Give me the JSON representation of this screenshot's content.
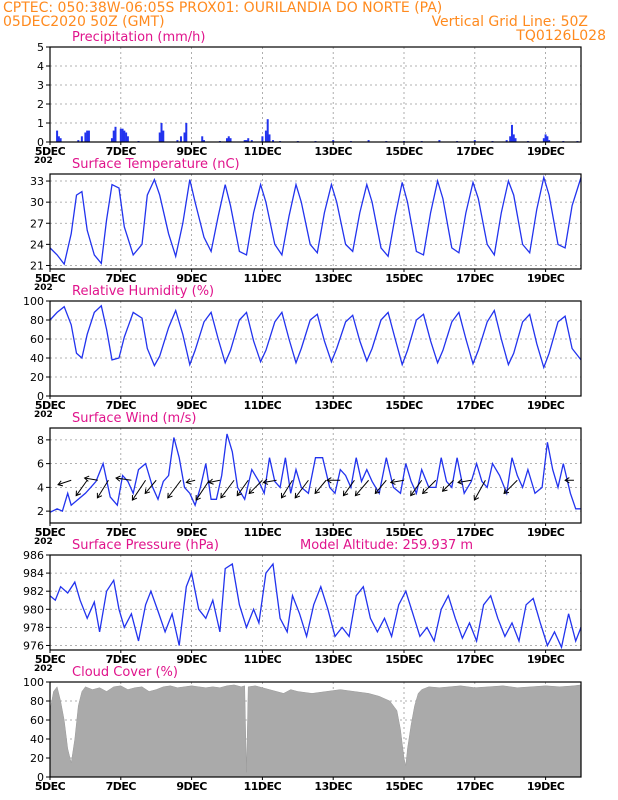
{
  "header": {
    "line1_left": "CPTEC:   050:38W-06:05S   PROX01: OURILANDIA DO NORTE (PA)",
    "line2_left": "05DEC2020 50Z (GMT)",
    "line2_right": "Vertical Grid Line: 50Z",
    "line3_right": "TQ0126L028"
  },
  "colors": {
    "header": "#ff8a1e",
    "title": "#e0148c",
    "series": "#2233ee",
    "cloud": "#aaaaaa",
    "grid": "#999999"
  },
  "x_axis": {
    "ticks": [
      "5DEC",
      "7DEC",
      "9DEC",
      "11DEC",
      "13DEC",
      "15DEC",
      "17DEC",
      "19DEC"
    ],
    "tick_days": [
      5,
      7,
      9,
      11,
      13,
      15,
      17,
      19
    ],
    "range": [
      5,
      20
    ],
    "year_stub": "202"
  },
  "chart_data": [
    {
      "type": "bar",
      "title": "Precipitation (mm/h)",
      "ylim": [
        0,
        5
      ],
      "yticks": [
        0,
        1,
        2,
        3,
        4,
        5
      ],
      "x": [
        5.2,
        5.25,
        5.3,
        5.8,
        5.9,
        6.0,
        6.05,
        6.1,
        6.75,
        6.8,
        6.85,
        7.0,
        7.05,
        7.1,
        7.15,
        7.2,
        7.5,
        8.1,
        8.15,
        8.2,
        8.6,
        8.7,
        8.8,
        8.85,
        9.3,
        9.35,
        9.8,
        10.0,
        10.05,
        10.1,
        10.5,
        10.55,
        10.6,
        10.7,
        11.0,
        11.1,
        11.15,
        11.2,
        11.3,
        11.5,
        12.0,
        12.5,
        13.0,
        13.5,
        14.0,
        14.5,
        15.0,
        15.5,
        16.0,
        16.5,
        17.0,
        17.5,
        17.9,
        18.0,
        18.05,
        18.1,
        18.15,
        18.5,
        18.95,
        19.0,
        19.05,
        19.1,
        19.5,
        19.9
      ],
      "values": [
        0.6,
        0.3,
        0.2,
        0.1,
        0.3,
        0.5,
        0.6,
        0.6,
        0.2,
        0.6,
        0.8,
        0.7,
        0.7,
        0.6,
        0.5,
        0.3,
        0.05,
        0.5,
        1.0,
        0.6,
        0.1,
        0.3,
        0.5,
        1.0,
        0.3,
        0.1,
        0.05,
        0.2,
        0.3,
        0.2,
        0.1,
        0.1,
        0.2,
        0.1,
        0.3,
        0.6,
        1.2,
        0.4,
        0.1,
        0.05,
        0.05,
        0.05,
        0.1,
        0.05,
        0.1,
        0.05,
        0.05,
        0.05,
        0.1,
        0.05,
        0.1,
        0.05,
        0.1,
        0.3,
        0.9,
        0.4,
        0.2,
        0.05,
        0.2,
        0.4,
        0.3,
        0.1,
        0.05,
        0.05
      ]
    },
    {
      "type": "line",
      "title": "Surface Temperature (nC)",
      "ylim": [
        20.5,
        34
      ],
      "yticks": [
        21,
        24,
        27,
        30,
        33
      ],
      "x": [
        5.0,
        5.2,
        5.4,
        5.6,
        5.75,
        5.9,
        6.05,
        6.25,
        6.45,
        6.6,
        6.75,
        6.95,
        7.1,
        7.35,
        7.6,
        7.75,
        7.95,
        8.1,
        8.35,
        8.55,
        8.75,
        8.95,
        9.1,
        9.35,
        9.55,
        9.75,
        9.95,
        10.1,
        10.35,
        10.55,
        10.75,
        10.95,
        11.1,
        11.35,
        11.55,
        11.75,
        11.95,
        12.1,
        12.35,
        12.55,
        12.75,
        12.95,
        13.1,
        13.35,
        13.55,
        13.75,
        13.95,
        14.1,
        14.35,
        14.55,
        14.75,
        14.95,
        15.1,
        15.35,
        15.55,
        15.75,
        15.95,
        16.1,
        16.35,
        16.55,
        16.75,
        16.95,
        17.1,
        17.35,
        17.55,
        17.75,
        17.95,
        18.1,
        18.35,
        18.55,
        18.75,
        18.95,
        19.1,
        19.35,
        19.55,
        19.75,
        20.0
      ],
      "values": [
        23.5,
        22.5,
        21.2,
        25.5,
        31.0,
        31.5,
        26.0,
        22.5,
        21.3,
        27.5,
        32.5,
        32.0,
        26.5,
        22.5,
        24.0,
        31.0,
        33.2,
        31.0,
        25.5,
        22.3,
        27.0,
        33.2,
        30.0,
        25.0,
        23.0,
        28.0,
        32.5,
        29.5,
        23.0,
        22.5,
        28.5,
        32.5,
        30.0,
        24.0,
        22.5,
        28.0,
        32.5,
        30.0,
        24.0,
        22.8,
        28.5,
        32.5,
        30.0,
        24.0,
        23.0,
        28.5,
        32.5,
        30.0,
        23.5,
        22.3,
        28.0,
        32.8,
        30.0,
        23.0,
        22.5,
        28.5,
        33.0,
        30.5,
        23.5,
        22.8,
        28.5,
        32.8,
        30.5,
        24.0,
        22.5,
        28.5,
        33.0,
        31.0,
        24.0,
        22.8,
        29.0,
        33.5,
        31.0,
        24.0,
        23.5,
        29.5,
        33.5
      ]
    },
    {
      "type": "line",
      "title": "Relative Humidity (%)",
      "ylim": [
        0,
        100
      ],
      "yticks": [
        0,
        20,
        40,
        60,
        80,
        100
      ],
      "x": [
        5.0,
        5.2,
        5.4,
        5.6,
        5.75,
        5.9,
        6.05,
        6.25,
        6.45,
        6.6,
        6.75,
        6.95,
        7.1,
        7.35,
        7.6,
        7.75,
        7.95,
        8.1,
        8.35,
        8.55,
        8.75,
        8.95,
        9.1,
        9.35,
        9.55,
        9.75,
        9.95,
        10.1,
        10.35,
        10.55,
        10.75,
        10.95,
        11.1,
        11.35,
        11.55,
        11.75,
        11.95,
        12.1,
        12.35,
        12.55,
        12.75,
        12.95,
        13.1,
        13.35,
        13.55,
        13.75,
        13.95,
        14.1,
        14.35,
        14.55,
        14.75,
        14.95,
        15.1,
        15.35,
        15.55,
        15.75,
        15.95,
        16.1,
        16.35,
        16.55,
        16.75,
        16.95,
        17.1,
        17.35,
        17.55,
        17.75,
        17.95,
        18.1,
        18.35,
        18.55,
        18.75,
        18.95,
        19.1,
        19.35,
        19.55,
        19.75,
        20.0
      ],
      "values": [
        80,
        88,
        94,
        75,
        45,
        40,
        65,
        88,
        95,
        70,
        38,
        40,
        62,
        88,
        82,
        50,
        32,
        42,
        72,
        90,
        65,
        33,
        48,
        78,
        88,
        60,
        35,
        48,
        80,
        88,
        58,
        36,
        48,
        78,
        88,
        60,
        35,
        50,
        80,
        86,
        58,
        36,
        50,
        78,
        85,
        58,
        37,
        50,
        80,
        88,
        60,
        33,
        48,
        80,
        86,
        58,
        35,
        48,
        78,
        88,
        60,
        34,
        48,
        78,
        90,
        60,
        33,
        45,
        78,
        86,
        55,
        30,
        45,
        78,
        84,
        50,
        38
      ]
    },
    {
      "type": "line",
      "title": "Surface Wind (m/s)",
      "ylim": [
        1,
        9
      ],
      "yticks": [
        2,
        4,
        6,
        8
      ],
      "x": [
        5.0,
        5.2,
        5.35,
        5.5,
        5.6,
        5.8,
        6.0,
        6.15,
        6.3,
        6.5,
        6.7,
        6.9,
        7.05,
        7.2,
        7.35,
        7.5,
        7.7,
        7.9,
        8.05,
        8.2,
        8.35,
        8.5,
        8.65,
        8.8,
        8.95,
        9.1,
        9.25,
        9.4,
        9.55,
        9.7,
        9.85,
        10.0,
        10.15,
        10.3,
        10.5,
        10.7,
        10.9,
        11.05,
        11.2,
        11.35,
        11.5,
        11.65,
        11.8,
        11.95,
        12.1,
        12.3,
        12.5,
        12.7,
        12.9,
        13.05,
        13.2,
        13.35,
        13.5,
        13.65,
        13.8,
        13.95,
        14.1,
        14.3,
        14.5,
        14.7,
        14.9,
        15.05,
        15.2,
        15.35,
        15.5,
        15.7,
        15.9,
        16.05,
        16.2,
        16.35,
        16.5,
        16.7,
        16.9,
        17.05,
        17.2,
        17.35,
        17.5,
        17.7,
        17.9,
        18.05,
        18.2,
        18.35,
        18.5,
        18.7,
        18.9,
        19.05,
        19.2,
        19.35,
        19.5,
        19.7,
        19.85,
        20.0
      ],
      "values": [
        1.9,
        2.2,
        2.0,
        3.5,
        2.5,
        3.0,
        3.5,
        4.0,
        4.5,
        6.0,
        3.2,
        2.5,
        5.0,
        4.5,
        3.5,
        5.5,
        6.0,
        4.0,
        3.0,
        4.5,
        5.0,
        8.2,
        6.5,
        4.0,
        3.5,
        2.5,
        4.0,
        6.0,
        3.0,
        3.0,
        5.0,
        8.5,
        7.0,
        4.0,
        3.0,
        5.5,
        4.5,
        3.5,
        6.5,
        4.5,
        4.0,
        6.5,
        3.5,
        5.5,
        4.0,
        3.5,
        6.5,
        6.5,
        4.0,
        3.5,
        5.5,
        5.0,
        4.0,
        6.5,
        4.5,
        5.5,
        4.5,
        3.5,
        6.5,
        4.0,
        3.5,
        6.0,
        4.5,
        3.5,
        5.5,
        4.0,
        4.0,
        6.5,
        4.5,
        4.0,
        6.5,
        3.5,
        4.5,
        6.0,
        4.5,
        4.0,
        6.0,
        5.0,
        3.5,
        6.5,
        5.0,
        4.0,
        5.5,
        3.5,
        4.0,
        7.8,
        5.5,
        4.0,
        6.0,
        3.5,
        2.2,
        2.2
      ],
      "arrows_u": [
        -0.6,
        -0.5,
        -0.6,
        -0.5,
        -0.7,
        -0.6,
        -0.5,
        -0.6,
        -0.4,
        -0.6,
        -0.5,
        -0.6,
        -0.5,
        -0.6,
        -0.6,
        -0.5,
        -0.6,
        -0.5,
        -0.6,
        -0.5,
        -0.6,
        -0.5,
        -0.6,
        -0.5,
        -0.6,
        -0.5,
        -0.6,
        -0.5,
        -0.6,
        -0.4
      ],
      "arrows_v": [
        -0.2,
        -0.7,
        0.1,
        -0.8,
        0.1,
        -0.9,
        -0.6,
        -0.8,
        -0.1,
        -0.9,
        -0.1,
        -0.8,
        -0.7,
        -0.6,
        -0.1,
        -0.8,
        -0.8,
        -0.6,
        0.0,
        -0.7,
        -0.7,
        -0.6,
        -0.1,
        -0.7,
        -0.6,
        -0.5,
        -0.1,
        -0.9,
        -0.6,
        0.0
      ],
      "arrows_x": [
        5.6,
        6.05,
        6.35,
        6.65,
        7.3,
        7.7,
        8.0,
        8.7,
        9.1,
        9.5,
        9.8,
        10.2,
        10.6,
        11.0,
        11.4,
        11.85,
        12.3,
        12.8,
        13.2,
        13.6,
        14.0,
        14.5,
        15.0,
        15.5,
        15.9,
        16.4,
        16.9,
        17.3,
        18.2,
        19.8
      ]
    },
    {
      "type": "line",
      "title": "Surface Pressure (hPa)",
      "subtitle": "Model Altitude: 259.937 m",
      "ylim": [
        975.5,
        986
      ],
      "yticks": [
        976,
        978,
        980,
        982,
        984,
        986
      ],
      "x": [
        5.0,
        5.15,
        5.3,
        5.5,
        5.7,
        5.85,
        6.05,
        6.25,
        6.4,
        6.6,
        6.8,
        6.95,
        7.1,
        7.3,
        7.5,
        7.7,
        7.85,
        8.05,
        8.25,
        8.45,
        8.65,
        8.85,
        9.0,
        9.2,
        9.4,
        9.6,
        9.8,
        9.95,
        10.15,
        10.35,
        10.55,
        10.75,
        10.9,
        11.1,
        11.3,
        11.5,
        11.7,
        11.85,
        12.05,
        12.25,
        12.45,
        12.65,
        12.85,
        13.05,
        13.25,
        13.45,
        13.65,
        13.85,
        14.05,
        14.25,
        14.45,
        14.65,
        14.85,
        15.05,
        15.25,
        15.45,
        15.65,
        15.85,
        16.05,
        16.25,
        16.45,
        16.65,
        16.85,
        17.05,
        17.25,
        17.45,
        17.65,
        17.85,
        18.05,
        18.25,
        18.45,
        18.65,
        18.85,
        19.05,
        19.25,
        19.45,
        19.65,
        19.85,
        20.0
      ],
      "values": [
        981.5,
        981.0,
        982.5,
        981.8,
        983.0,
        981.0,
        979.0,
        980.8,
        977.5,
        982.0,
        983.2,
        980.0,
        978.0,
        979.5,
        976.5,
        980.5,
        982.0,
        979.8,
        977.5,
        979.5,
        976.0,
        982.5,
        984.0,
        980.0,
        979.0,
        981.0,
        977.5,
        984.5,
        985.0,
        980.5,
        978.0,
        980.0,
        978.5,
        984.0,
        985.0,
        979.0,
        977.5,
        981.5,
        979.5,
        977.0,
        980.5,
        982.5,
        980.0,
        977.0,
        978.0,
        977.0,
        981.5,
        982.5,
        979.0,
        977.5,
        979.0,
        977.0,
        980.5,
        982.0,
        979.5,
        977.0,
        978.0,
        976.5,
        980.0,
        981.5,
        979.0,
        976.8,
        978.5,
        976.5,
        980.5,
        981.5,
        979.0,
        977.0,
        978.5,
        976.5,
        980.5,
        981.2,
        978.5,
        976.0,
        977.5,
        975.8,
        979.5,
        976.5,
        978.0
      ]
    },
    {
      "type": "area",
      "title": "Cloud Cover (%)",
      "ylim": [
        0,
        100
      ],
      "yticks": [
        0,
        20,
        40,
        60,
        80,
        100
      ],
      "x": [
        5.0,
        5.1,
        5.2,
        5.3,
        5.4,
        5.5,
        5.6,
        5.7,
        5.8,
        5.9,
        6.0,
        6.2,
        6.4,
        6.6,
        6.8,
        7.0,
        7.2,
        7.4,
        7.6,
        7.8,
        8.0,
        8.2,
        8.4,
        8.6,
        8.8,
        9.0,
        9.2,
        9.4,
        9.6,
        9.8,
        10.0,
        10.2,
        10.4,
        10.5,
        10.55,
        10.6,
        10.8,
        11.0,
        11.2,
        11.4,
        11.6,
        11.8,
        12.0,
        12.4,
        12.8,
        13.2,
        13.6,
        14.0,
        14.3,
        14.6,
        14.8,
        14.9,
        15.0,
        15.05,
        15.1,
        15.2,
        15.3,
        15.4,
        15.5,
        15.7,
        16.0,
        16.3,
        16.6,
        17.0,
        17.4,
        17.8,
        18.2,
        18.6,
        19.0,
        19.4,
        19.8,
        20.0
      ],
      "values": [
        70,
        90,
        95,
        80,
        60,
        30,
        15,
        40,
        75,
        90,
        95,
        92,
        94,
        90,
        95,
        96,
        92,
        94,
        95,
        90,
        92,
        95,
        96,
        94,
        95,
        96,
        95,
        94,
        95,
        94,
        96,
        97,
        95,
        96,
        5,
        95,
        96,
        94,
        92,
        90,
        88,
        92,
        90,
        88,
        90,
        92,
        90,
        88,
        85,
        80,
        70,
        50,
        20,
        12,
        30,
        55,
        75,
        88,
        92,
        95,
        94,
        95,
        96,
        94,
        95,
        96,
        94,
        95,
        96,
        95,
        96,
        97
      ]
    }
  ]
}
